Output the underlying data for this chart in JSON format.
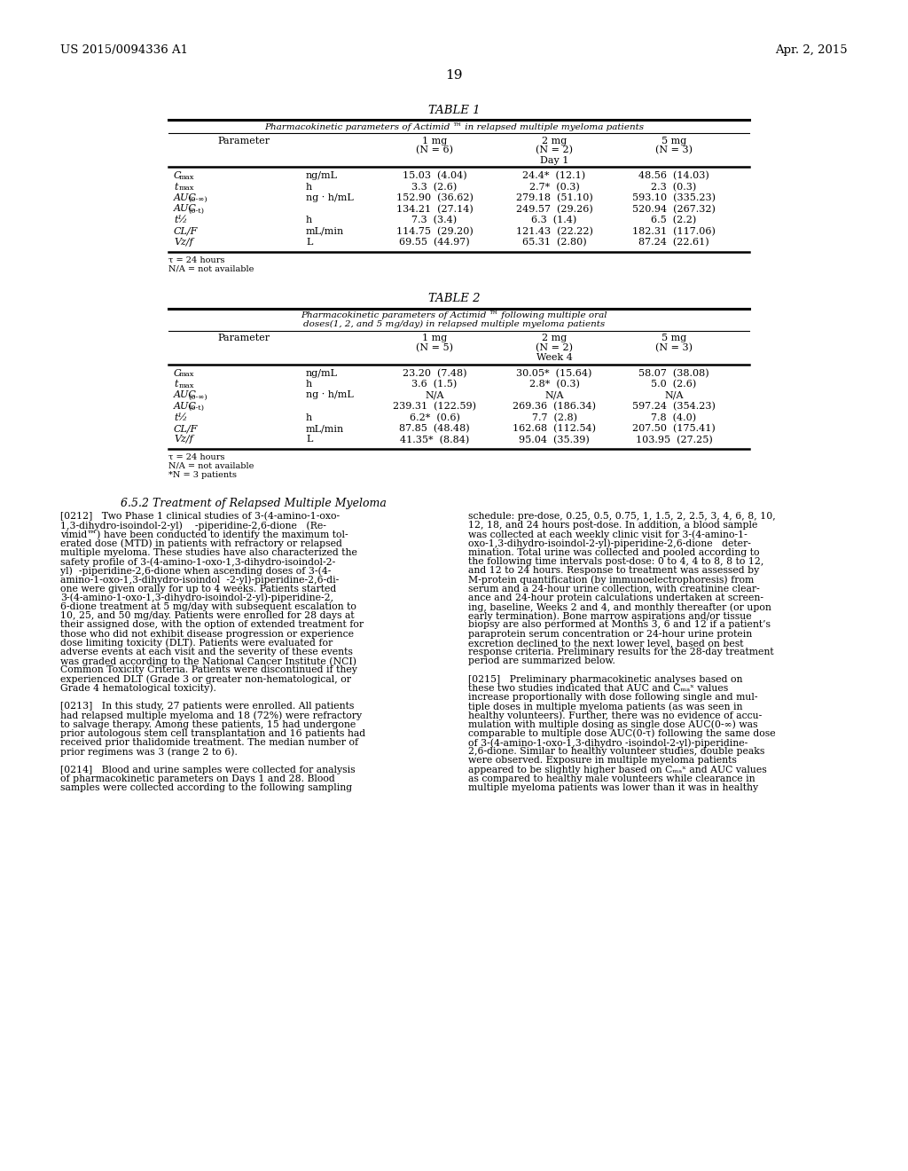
{
  "bg_color": "#ffffff",
  "header_left": "US 2015/0094336 A1",
  "header_right": "Apr. 2, 2015",
  "page_number": "19",
  "table1": {
    "title": "TABLE 1",
    "subtitle": "Pharmacokinetic parameters of Actimid ™ in relapsed multiple myeloma patients",
    "params": [
      [
        "C",
        "max",
        "ng/mL",
        "15.03  (4.04)",
        "24.4*  (12.1)",
        "48.56  (14.03)"
      ],
      [
        "t",
        "max",
        "h",
        "3.3  (2.6)",
        "2.7*  (0.3)",
        "2.3  (0.3)"
      ],
      [
        "AUC",
        "(0-∞)",
        "ng · h/mL",
        "152.90  (36.62)",
        "279.18  (51.10)",
        "593.10  (335.23)"
      ],
      [
        "AUC",
        "(0-t)",
        "",
        "134.21  (27.14)",
        "249.57  (29.26)",
        "520.94  (267.32)"
      ],
      [
        "t½",
        "",
        "h",
        "7.3  (3.4)",
        "6.3  (1.4)",
        "6.5  (2.2)"
      ],
      [
        "CL/F",
        "",
        "mL/min",
        "114.75  (29.20)",
        "121.43  (22.22)",
        "182.31  (117.06)"
      ],
      [
        "Vz/f",
        "",
        "L",
        "69.55  (44.97)",
        "65.31  (2.80)",
        "87.24  (22.61)"
      ]
    ],
    "col1": "1 mg",
    "col1n": "(N = 6)",
    "col2": "2 mg",
    "col2n": "(N = 2)",
    "col3": "5 mg",
    "col3n": "(N = 3)",
    "period": "Day 1",
    "footnotes": [
      "τ = 24 hours",
      "N/A = not available"
    ]
  },
  "table2": {
    "title": "TABLE 2",
    "subtitle1": "Pharmacokinetic parameters of Actimid ™ following multiple oral",
    "subtitle2": "doses(1, 2, and 5 mg/day) in relapsed multiple myeloma patients",
    "params": [
      [
        "C",
        "max",
        "ng/mL",
        "23.20  (7.48)",
        "30.05*  (15.64)",
        "58.07  (38.08)"
      ],
      [
        "t",
        "max",
        "h",
        "3.6  (1.5)",
        "2.8*  (0.3)",
        "5.0  (2.6)"
      ],
      [
        "AUC",
        "(0-∞)",
        "ng · h/mL",
        "N/A",
        "N/A",
        "N/A"
      ],
      [
        "AUC",
        "(0-t)",
        "",
        "239.31  (122.59)",
        "269.36  (186.34)",
        "597.24  (354.23)"
      ],
      [
        "t½",
        "",
        "h",
        "6.2*  (0.6)",
        "7.7  (2.8)",
        "7.8  (4.0)"
      ],
      [
        "CL/F",
        "",
        "mL/min",
        "87.85  (48.48)",
        "162.68  (112.54)",
        "207.50  (175.41)"
      ],
      [
        "Vz/f",
        "",
        "L",
        "41.35*  (8.84)",
        "95.04  (35.39)",
        "103.95  (27.25)"
      ]
    ],
    "col1": "1 mg",
    "col1n": "(N = 5)",
    "col2": "2 mg",
    "col2n": "(N = 2)",
    "col3": "5 mg",
    "col3n": "(N = 3)",
    "period": "Week 4",
    "footnotes": [
      "τ = 24 hours",
      "N/A = not available",
      "*N = 3 patients"
    ]
  },
  "section_heading": "6.5.2 Treatment of Relapsed Multiple Myeloma",
  "left_col_lines": [
    "[0212]   Two Phase 1 clinical studies of 3-(4-amino-1-oxo-",
    "1,3-dihydro-isoindol-2-yl)    -piperidine-2,6-dione   (Re-",
    "vimid™) have been conducted to identify the maximum tol-",
    "erated dose (MTD) in patients with refractory or relapsed",
    "multiple myeloma. These studies have also characterized the",
    "safety profile of 3-(4-amino-1-oxo-1,3-dihydro-isoindol-2-",
    "yl)  -piperidine-2,6-dione when ascending doses of 3-(4-",
    "amino-1-oxo-1,3-dihydro-isoindol  -2-yl)-piperidine-2,6-di-",
    "one were given orally for up to 4 weeks. Patients started",
    "3-(4-amino-1-oxo-1,3-dihydro-isoindol-2-yl)-piperidine-2,",
    "6-dione treatment at 5 mg/day with subsequent escalation to",
    "10, 25, and 50 mg/day. Patients were enrolled for 28 days at",
    "their assigned dose, with the option of extended treatment for",
    "those who did not exhibit disease progression or experience",
    "dose limiting toxicity (DLT). Patients were evaluated for",
    "adverse events at each visit and the severity of these events",
    "was graded according to the National Cancer Institute (NCI)",
    "Common Toxicity Criteria. Patients were discontinued if they",
    "experienced DLT (Grade 3 or greater non-hematological, or",
    "Grade 4 hematological toxicity).",
    "",
    "[0213]   In this study, 27 patients were enrolled. All patients",
    "had relapsed multiple myeloma and 18 (72%) were refractory",
    "to salvage therapy. Among these patients, 15 had undergone",
    "prior autologous stem cell transplantation and 16 patients had",
    "received prior thalidomide treatment. The median number of",
    "prior regimens was 3 (range 2 to 6).",
    "",
    "[0214]   Blood and urine samples were collected for analysis",
    "of pharmacokinetic parameters on Days 1 and 28. Blood",
    "samples were collected according to the following sampling"
  ],
  "right_col_lines": [
    "schedule: pre-dose, 0.25, 0.5, 0.75, 1, 1.5, 2, 2.5, 3, 4, 6, 8, 10,",
    "12, 18, and 24 hours post-dose. In addition, a blood sample",
    "was collected at each weekly clinic visit for 3-(4-amino-1-",
    "oxo-1,3-dihydro-isoindol-2-yl)-piperidine-2,6-dione   deter-",
    "mination. Total urine was collected and pooled according to",
    "the following time intervals post-dose: 0 to 4, 4 to 8, 8 to 12,",
    "and 12 to 24 hours. Response to treatment was assessed by",
    "M-protein quantification (by immunoelectrophoresis) from",
    "serum and a 24-hour urine collection, with creatinine clear-",
    "ance and 24-hour protein calculations undertaken at screen-",
    "ing, baseline, Weeks 2 and 4, and monthly thereafter (or upon",
    "early termination). Bone marrow aspirations and/or tissue",
    "biopsy are also performed at Months 3, 6 and 12 if a patient’s",
    "paraprotein serum concentration or 24-hour urine protein",
    "excretion declined to the next lower level, based on best",
    "response criteria. Preliminary results for the 28-day treatment",
    "period are summarized below.",
    "",
    "[0215]   Preliminary pharmacokinetic analyses based on",
    "these two studies indicated that AUC and Cₘₐˣ values",
    "increase proportionally with dose following single and mul-",
    "tiple doses in multiple myeloma patients (as was seen in",
    "healthy volunteers). Further, there was no evidence of accu-",
    "mulation with multiple dosing as single dose AUC(0-∞) was",
    "comparable to multiple dose AUC(0-τ) following the same dose",
    "of 3-(4-amino-1-oxo-1,3-dihydro -isoindol-2-yl)-piperidine-",
    "2,6-dione. Similar to healthy volunteer studies, double peaks",
    "were observed. Exposure in multiple myeloma patients",
    "appeared to be slightly higher based on Cₘₐˣ and AUC values",
    "as compared to healthy male volunteers while clearance in",
    "multiple myeloma patients was lower than it was in healthy"
  ]
}
